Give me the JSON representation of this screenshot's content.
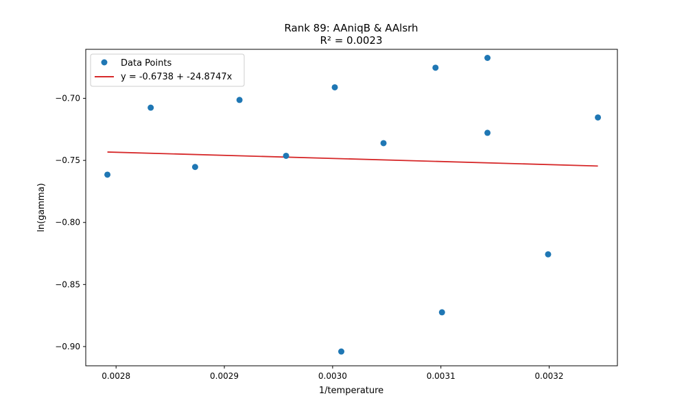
{
  "chart_data": {
    "type": "scatter",
    "title": "Rank 89: AAniqB & AAlsrh",
    "subtitle": "R² = 0.0023",
    "xlabel": "1/temperature",
    "ylabel": "ln(gamma)",
    "xlim": [
      0.002772,
      0.003263
    ],
    "ylim": [
      -0.9155,
      -0.6605
    ],
    "x_ticks": [
      0.0028,
      0.0029,
      0.003,
      0.0031,
      0.0032
    ],
    "x_tick_labels": [
      "0.0028",
      "0.0029",
      "0.0030",
      "0.0031",
      "0.0032"
    ],
    "y_ticks": [
      -0.9,
      -0.85,
      -0.8,
      -0.75,
      -0.7
    ],
    "y_tick_labels": [
      "−0.90",
      "−0.85",
      "−0.80",
      "−0.75",
      "−0.70"
    ],
    "legend_position": "top-left",
    "grid": false,
    "series": [
      {
        "name": "Data Points",
        "color": "#1f77b4",
        "points": [
          {
            "x": 0.002792,
            "y": -0.7615
          },
          {
            "x": 0.002832,
            "y": -0.7075
          },
          {
            "x": 0.002873,
            "y": -0.7553
          },
          {
            "x": 0.002914,
            "y": -0.7013
          },
          {
            "x": 0.002957,
            "y": -0.7463
          },
          {
            "x": 0.003002,
            "y": -0.6911
          },
          {
            "x": 0.003008,
            "y": -0.904
          },
          {
            "x": 0.003047,
            "y": -0.7361
          },
          {
            "x": 0.003095,
            "y": -0.6753
          },
          {
            "x": 0.003101,
            "y": -0.8724
          },
          {
            "x": 0.003143,
            "y": -0.6674
          },
          {
            "x": 0.003143,
            "y": -0.7278
          },
          {
            "x": 0.003199,
            "y": -0.8257
          },
          {
            "x": 0.003245,
            "y": -0.7154
          }
        ]
      },
      {
        "name": "y = -0.6738 + -24.8747x",
        "color": "#d62728",
        "type": "line",
        "intercept": -0.6738,
        "slope": -24.8747,
        "x_range": [
          0.002792,
          0.003245
        ]
      }
    ]
  }
}
